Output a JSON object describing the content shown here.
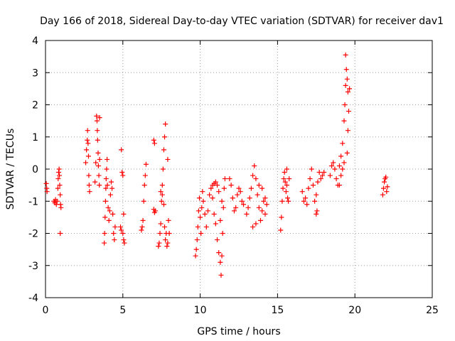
{
  "chart_data": {
    "type": "scatter",
    "title": "Day 166 of 2018, Sidereal Day-to-day VTEC variation (SDTVAR) for receiver dav1",
    "xlabel": "GPS time / hours",
    "ylabel": "SDTVAR / TECUs",
    "xlim": [
      0,
      25
    ],
    "ylim": [
      -4,
      4
    ],
    "xticks": [
      "0",
      "5",
      "10",
      "15",
      "20",
      "25"
    ],
    "yticks": [
      "-4",
      "-3",
      "-2",
      "-1",
      "0",
      "1",
      "2",
      "3",
      "4"
    ],
    "grid": true,
    "marker": "+",
    "color": "#ff0000",
    "series": [
      {
        "name": "dav1",
        "points": [
          [
            0.05,
            -0.45
          ],
          [
            0.08,
            -0.6
          ],
          [
            0.1,
            -0.7
          ],
          [
            0.55,
            -1.0
          ],
          [
            0.6,
            -1.05
          ],
          [
            0.65,
            -0.95
          ],
          [
            0.7,
            -1.1
          ],
          [
            0.75,
            -1.0
          ],
          [
            0.8,
            -0.6
          ],
          [
            0.82,
            -0.3
          ],
          [
            0.85,
            -0.1
          ],
          [
            0.88,
            0.0
          ],
          [
            0.9,
            -0.2
          ],
          [
            0.92,
            -0.5
          ],
          [
            0.95,
            -0.8
          ],
          [
            0.97,
            -1.1
          ],
          [
            1.0,
            -1.2
          ],
          [
            0.95,
            -2.0
          ],
          [
            2.6,
            0.2
          ],
          [
            2.65,
            0.6
          ],
          [
            2.7,
            0.9
          ],
          [
            2.72,
            1.2
          ],
          [
            2.75,
            0.8
          ],
          [
            2.78,
            0.4
          ],
          [
            2.8,
            -0.2
          ],
          [
            2.82,
            -0.5
          ],
          [
            2.85,
            -0.7
          ],
          [
            3.3,
            1.65
          ],
          [
            3.33,
            1.5
          ],
          [
            3.35,
            1.2
          ],
          [
            3.37,
            0.9
          ],
          [
            3.4,
            0.5
          ],
          [
            3.42,
            0.1
          ],
          [
            3.45,
            -0.2
          ],
          [
            3.48,
            -0.5
          ],
          [
            3.5,
            0.3
          ],
          [
            3.2,
            -0.4
          ],
          [
            3.25,
            0.2
          ],
          [
            3.5,
            1.6
          ],
          [
            3.8,
            -2.3
          ],
          [
            3.82,
            -2.0
          ],
          [
            3.85,
            -1.5
          ],
          [
            3.88,
            -1.0
          ],
          [
            3.9,
            -0.6
          ],
          [
            3.92,
            -0.3
          ],
          [
            3.95,
            0.0
          ],
          [
            3.98,
            0.3
          ],
          [
            4.0,
            -0.5
          ],
          [
            4.05,
            -1.2
          ],
          [
            4.1,
            -1.6
          ],
          [
            4.15,
            -1.3
          ],
          [
            4.2,
            -0.8
          ],
          [
            4.25,
            -0.4
          ],
          [
            4.3,
            -0.6
          ],
          [
            4.35,
            -1.4
          ],
          [
            4.4,
            -2.0
          ],
          [
            4.45,
            -2.2
          ],
          [
            4.5,
            -1.8
          ],
          [
            4.9,
            0.6
          ],
          [
            4.95,
            -0.1
          ],
          [
            5.0,
            -0.2
          ],
          [
            5.05,
            -1.4
          ],
          [
            4.85,
            -1.8
          ],
          [
            4.9,
            -1.9
          ],
          [
            5.0,
            -2.0
          ],
          [
            5.05,
            -2.2
          ],
          [
            5.1,
            -2.3
          ],
          [
            6.2,
            -1.9
          ],
          [
            6.25,
            -1.8
          ],
          [
            6.3,
            -1.6
          ],
          [
            6.35,
            -1.0
          ],
          [
            6.4,
            -0.5
          ],
          [
            6.45,
            -0.2
          ],
          [
            6.5,
            0.15
          ],
          [
            7.0,
            0.9
          ],
          [
            7.05,
            0.8
          ],
          [
            7.0,
            -1.25
          ],
          [
            7.05,
            -1.35
          ],
          [
            7.1,
            -1.3
          ],
          [
            7.3,
            -2.4
          ],
          [
            7.35,
            -2.3
          ],
          [
            7.4,
            -2.0
          ],
          [
            7.45,
            -1.7
          ],
          [
            7.5,
            -1.0
          ],
          [
            7.55,
            -0.5
          ],
          [
            7.6,
            0.0
          ],
          [
            7.65,
            0.6
          ],
          [
            7.7,
            1.0
          ],
          [
            7.75,
            1.4
          ],
          [
            7.45,
            -0.7
          ],
          [
            7.55,
            -0.8
          ],
          [
            7.65,
            -1.1
          ],
          [
            7.7,
            -1.8
          ],
          [
            7.75,
            -2.2
          ],
          [
            7.8,
            -2.0
          ],
          [
            7.85,
            -2.4
          ],
          [
            7.9,
            -2.3
          ],
          [
            7.95,
            -1.6
          ],
          [
            8.0,
            -2.0
          ],
          [
            7.9,
            0.3
          ],
          [
            9.7,
            -2.7
          ],
          [
            9.75,
            -2.5
          ],
          [
            9.8,
            -2.2
          ],
          [
            9.85,
            -1.8
          ],
          [
            9.9,
            -1.3
          ],
          [
            9.95,
            -0.9
          ],
          [
            10.0,
            -1.5
          ],
          [
            10.05,
            -2.0
          ],
          [
            10.1,
            -1.2
          ],
          [
            10.15,
            -0.7
          ],
          [
            10.2,
            -1.0
          ],
          [
            10.3,
            -1.4
          ],
          [
            10.4,
            -1.8
          ],
          [
            10.5,
            -1.3
          ],
          [
            10.6,
            -0.8
          ],
          [
            10.7,
            -0.6
          ],
          [
            10.8,
            -0.9
          ],
          [
            10.9,
            -1.4
          ],
          [
            11.0,
            -1.7
          ],
          [
            11.1,
            -2.2
          ],
          [
            11.2,
            -2.6
          ],
          [
            11.3,
            -2.9
          ],
          [
            11.35,
            -3.3
          ],
          [
            11.4,
            -2.7
          ],
          [
            11.45,
            -2.0
          ],
          [
            11.5,
            -1.2
          ],
          [
            11.55,
            -0.6
          ],
          [
            11.6,
            -0.3
          ],
          [
            11.0,
            -0.4
          ],
          [
            11.1,
            -0.5
          ],
          [
            11.2,
            -0.7
          ],
          [
            10.9,
            -0.45
          ],
          [
            10.8,
            -0.5
          ],
          [
            11.3,
            -1.6
          ],
          [
            11.4,
            -1.0
          ],
          [
            11.9,
            -0.3
          ],
          [
            12.0,
            -0.5
          ],
          [
            12.1,
            -0.9
          ],
          [
            12.2,
            -1.3
          ],
          [
            12.3,
            -1.2
          ],
          [
            12.4,
            -0.8
          ],
          [
            12.5,
            -0.6
          ],
          [
            12.6,
            -0.7
          ],
          [
            12.7,
            -1.0
          ],
          [
            12.8,
            -1.1
          ],
          [
            13.0,
            -1.4
          ],
          [
            13.1,
            -1.2
          ],
          [
            13.2,
            -0.9
          ],
          [
            13.3,
            -0.6
          ],
          [
            13.4,
            -0.2
          ],
          [
            13.5,
            0.1
          ],
          [
            13.6,
            -0.3
          ],
          [
            13.7,
            -0.8
          ],
          [
            13.8,
            -1.2
          ],
          [
            13.9,
            -1.6
          ],
          [
            14.0,
            -1.3
          ],
          [
            14.1,
            -1.0
          ],
          [
            14.2,
            -1.4
          ],
          [
            14.3,
            -1.1
          ],
          [
            13.6,
            -1.7
          ],
          [
            13.4,
            -1.8
          ],
          [
            13.8,
            -0.5
          ],
          [
            14.0,
            -0.6
          ],
          [
            14.2,
            -0.9
          ],
          [
            15.2,
            -1.9
          ],
          [
            15.25,
            -1.5
          ],
          [
            15.3,
            -1.0
          ],
          [
            15.35,
            -0.6
          ],
          [
            15.4,
            -0.3
          ],
          [
            15.45,
            -0.1
          ],
          [
            15.5,
            -0.4
          ],
          [
            15.55,
            -0.7
          ],
          [
            15.6,
            -0.5
          ],
          [
            15.65,
            -0.9
          ],
          [
            15.7,
            -1.0
          ],
          [
            15.75,
            -0.3
          ],
          [
            15.6,
            0.0
          ],
          [
            16.6,
            -0.7
          ],
          [
            16.7,
            -1.0
          ],
          [
            16.8,
            -0.9
          ],
          [
            16.9,
            -1.1
          ],
          [
            17.0,
            -0.6
          ],
          [
            17.1,
            -0.3
          ],
          [
            17.2,
            0.0
          ],
          [
            17.3,
            -0.5
          ],
          [
            17.4,
            -1.0
          ],
          [
            17.5,
            -0.8
          ],
          [
            17.6,
            -0.4
          ],
          [
            17.7,
            -0.1
          ],
          [
            17.8,
            -0.3
          ],
          [
            17.5,
            -1.4
          ],
          [
            17.55,
            -1.3
          ],
          [
            17.9,
            -0.2
          ],
          [
            18.0,
            -0.1
          ],
          [
            18.4,
            -0.2
          ],
          [
            18.5,
            0.1
          ],
          [
            18.6,
            0.2
          ],
          [
            18.7,
            0.0
          ],
          [
            18.8,
            -0.3
          ],
          [
            18.9,
            -0.5
          ],
          [
            19.0,
            0.1
          ],
          [
            19.1,
            0.4
          ],
          [
            19.2,
            0.8
          ],
          [
            19.3,
            1.5
          ],
          [
            19.35,
            2.0
          ],
          [
            19.4,
            2.6
          ],
          [
            19.45,
            3.1
          ],
          [
            19.4,
            3.55
          ],
          [
            19.5,
            2.8
          ],
          [
            19.55,
            2.4
          ],
          [
            19.6,
            1.8
          ],
          [
            19.65,
            2.5
          ],
          [
            19.3,
            0.2
          ],
          [
            19.2,
            0.0
          ],
          [
            19.5,
            0.5
          ],
          [
            19.55,
            1.2
          ],
          [
            19.1,
            -0.2
          ],
          [
            19.0,
            -0.5
          ],
          [
            21.8,
            -0.8
          ],
          [
            21.85,
            -0.6
          ],
          [
            21.9,
            -0.4
          ],
          [
            21.95,
            -0.3
          ],
          [
            22.0,
            -0.25
          ],
          [
            22.05,
            -0.7
          ],
          [
            22.1,
            -0.55
          ]
        ]
      }
    ]
  }
}
